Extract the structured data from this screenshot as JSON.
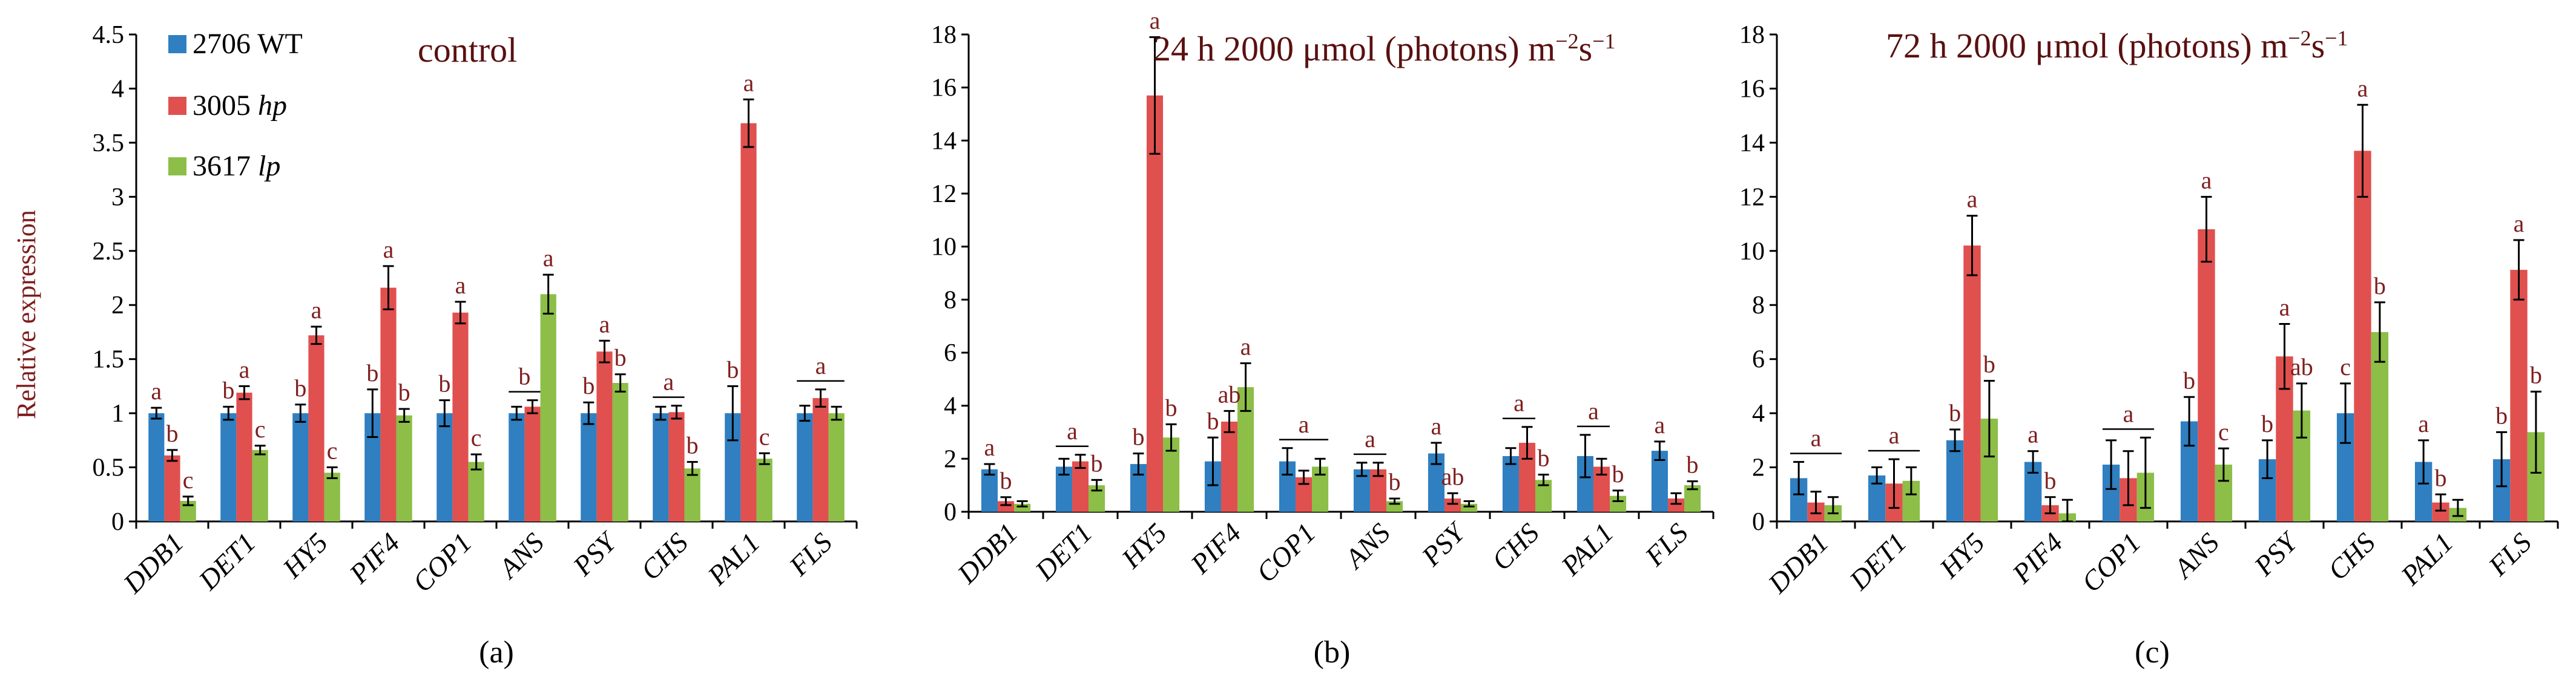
{
  "y_axis_label": "Relative expression",
  "colors": {
    "series": [
      "#2f7fc1",
      "#e0504f",
      "#8cbe48"
    ],
    "significance": "#7f1d1d",
    "title": "#5a1010"
  },
  "legend": [
    {
      "id": "wt",
      "label": "2706 WT"
    },
    {
      "id": "hp",
      "label": "3005 ",
      "italic": "hp"
    },
    {
      "id": "lp",
      "label": "3617 ",
      "italic": "lp"
    }
  ],
  "chart_data": [
    {
      "type": "bar",
      "panel_label": "(a)",
      "title": {
        "text": "control"
      },
      "categories": [
        "DDB1",
        "DET1",
        "HY5",
        "PIF4",
        "COP1",
        "ANS",
        "PSY",
        "CHS",
        "PAL1",
        "FLS"
      ],
      "ylim": [
        0,
        4.5
      ],
      "yticks": [
        "0",
        "0.5",
        "1",
        "1.5",
        "2",
        "2.5",
        "3",
        "3.5",
        "4",
        "4.5"
      ],
      "ytick_values": [
        0,
        0.5,
        1,
        1.5,
        2,
        2.5,
        3,
        3.5,
        4,
        4.5
      ],
      "ylabel": "Relative expression",
      "series": [
        {
          "name": "2706 WT",
          "values": [
            1.0,
            1.0,
            1.0,
            1.0,
            1.0,
            1.0,
            1.0,
            1.0,
            1.0,
            1.0
          ],
          "errors": [
            0.05,
            0.06,
            0.08,
            0.22,
            0.12,
            0.06,
            0.1,
            0.06,
            0.25,
            0.07
          ]
        },
        {
          "name": "3005 hp",
          "values": [
            0.61,
            1.19,
            1.72,
            2.16,
            1.93,
            1.06,
            1.57,
            1.01,
            3.68,
            1.14
          ],
          "errors": [
            0.05,
            0.06,
            0.08,
            0.2,
            0.1,
            0.06,
            0.1,
            0.06,
            0.22,
            0.08
          ]
        },
        {
          "name": "3617 lp",
          "values": [
            0.19,
            0.66,
            0.45,
            0.98,
            0.55,
            2.1,
            1.28,
            0.49,
            0.58,
            1.0
          ],
          "errors": [
            0.04,
            0.04,
            0.05,
            0.06,
            0.07,
            0.18,
            0.08,
            0.06,
            0.05,
            0.06
          ]
        }
      ],
      "significance": [
        {
          "cat": 0,
          "labels": [
            "a",
            "b",
            "c"
          ]
        },
        {
          "cat": 1,
          "labels": [
            "b",
            "a",
            "c"
          ]
        },
        {
          "cat": 2,
          "labels": [
            "b",
            "a",
            "c"
          ]
        },
        {
          "cat": 3,
          "labels": [
            "b",
            "a",
            "b"
          ]
        },
        {
          "cat": 4,
          "labels": [
            "b",
            "a",
            "c"
          ]
        },
        {
          "cat": 5,
          "group": "b",
          "labels": [
            "",
            "",
            "a"
          ]
        },
        {
          "cat": 6,
          "labels": [
            "b",
            "a",
            "b"
          ]
        },
        {
          "cat": 7,
          "group": "a",
          "labels": [
            "",
            "",
            "b"
          ]
        },
        {
          "cat": 8,
          "labels": [
            "b",
            "a",
            "c"
          ]
        },
        {
          "cat": 9,
          "group": "a",
          "labels": [
            "",
            "",
            ""
          ]
        }
      ]
    },
    {
      "type": "bar",
      "panel_label": "(b)",
      "title": {
        "text": "24 h  2000 μmol (photons) m",
        "sup1": "−2",
        "mid": "s",
        "sup2": "−1"
      },
      "categories": [
        "DDB1",
        "DET1",
        "HY5",
        "PIF4",
        "COP1",
        "ANS",
        "PSY",
        "CHS",
        "PAL1",
        "FLS"
      ],
      "ylim": [
        0,
        18
      ],
      "yticks": [
        "0",
        "2",
        "4",
        "6",
        "8",
        "10",
        "12",
        "14",
        "16",
        "18"
      ],
      "ytick_values": [
        0,
        2,
        4,
        6,
        8,
        10,
        12,
        14,
        16,
        18
      ],
      "ylabel": "",
      "series": [
        {
          "name": "2706 WT",
          "values": [
            1.6,
            1.7,
            1.8,
            1.9,
            1.9,
            1.6,
            2.2,
            2.1,
            2.1,
            2.3
          ],
          "errors": [
            0.2,
            0.3,
            0.4,
            0.9,
            0.5,
            0.25,
            0.4,
            0.3,
            0.8,
            0.35
          ]
        },
        {
          "name": "3005 hp",
          "values": [
            0.4,
            1.9,
            15.7,
            3.4,
            1.3,
            1.6,
            0.5,
            2.6,
            1.7,
            0.5
          ],
          "errors": [
            0.15,
            0.25,
            2.2,
            0.4,
            0.25,
            0.25,
            0.2,
            0.6,
            0.3,
            0.2
          ]
        },
        {
          "name": "3617 lp",
          "values": [
            0.3,
            1.0,
            2.8,
            4.7,
            1.7,
            0.4,
            0.3,
            1.2,
            0.6,
            1.0
          ],
          "errors": [
            0.1,
            0.2,
            0.5,
            0.9,
            0.3,
            0.1,
            0.1,
            0.2,
            0.2,
            0.15
          ]
        }
      ],
      "significance": [
        {
          "cat": 0,
          "labels": [
            "a",
            "b",
            ""
          ]
        },
        {
          "cat": 1,
          "group": "a",
          "labels": [
            "",
            "",
            "b"
          ]
        },
        {
          "cat": 2,
          "labels": [
            "b",
            "a",
            "b"
          ]
        },
        {
          "cat": 3,
          "labels": [
            "b",
            "ab",
            "a"
          ]
        },
        {
          "cat": 4,
          "group": "a",
          "labels": [
            "",
            "",
            ""
          ]
        },
        {
          "cat": 5,
          "group": "a",
          "labels": [
            "",
            "",
            "b"
          ]
        },
        {
          "cat": 6,
          "labels": [
            "a",
            "ab",
            ""
          ]
        },
        {
          "cat": 7,
          "group": "a",
          "labels": [
            "",
            "",
            "b"
          ]
        },
        {
          "cat": 8,
          "group": "a",
          "labels": [
            "",
            "",
            "b"
          ]
        },
        {
          "cat": 9,
          "labels": [
            "a",
            "",
            "b"
          ]
        }
      ]
    },
    {
      "type": "bar",
      "panel_label": "(c)",
      "title": {
        "text": "72 h  2000 μmol (photons) m",
        "sup1": "−2",
        "mid": "s",
        "sup2": "−1"
      },
      "categories": [
        "DDB1",
        "DET1",
        "HY5",
        "PIF4",
        "COP1",
        "ANS",
        "PSY",
        "CHS",
        "PAL1",
        "FLS"
      ],
      "ylim": [
        0,
        18
      ],
      "yticks": [
        "0",
        "2",
        "4",
        "6",
        "8",
        "10",
        "12",
        "14",
        "16",
        "18"
      ],
      "ytick_values": [
        0,
        2,
        4,
        6,
        8,
        10,
        12,
        14,
        16,
        18
      ],
      "ylabel": "",
      "series": [
        {
          "name": "2706 WT",
          "values": [
            1.6,
            1.7,
            3.0,
            2.2,
            2.1,
            3.7,
            2.3,
            4.0,
            2.2,
            2.3
          ],
          "errors": [
            0.6,
            0.3,
            0.4,
            0.4,
            0.9,
            0.9,
            0.7,
            1.1,
            0.8,
            1.0
          ]
        },
        {
          "name": "3005 hp",
          "values": [
            0.7,
            1.4,
            10.2,
            0.6,
            1.6,
            10.8,
            6.1,
            13.7,
            0.7,
            9.3
          ],
          "errors": [
            0.4,
            0.9,
            1.1,
            0.3,
            1.0,
            1.2,
            1.2,
            1.7,
            0.3,
            1.1
          ]
        },
        {
          "name": "3617 lp",
          "values": [
            0.6,
            1.5,
            3.8,
            0.3,
            1.8,
            2.1,
            4.1,
            7.0,
            0.5,
            3.3
          ],
          "errors": [
            0.3,
            0.5,
            1.4,
            0.5,
            1.3,
            0.6,
            1.0,
            1.1,
            0.3,
            1.5
          ]
        }
      ],
      "significance": [
        {
          "cat": 0,
          "group": "a",
          "labels": [
            "",
            "",
            ""
          ]
        },
        {
          "cat": 1,
          "group": "a",
          "labels": [
            "",
            "",
            ""
          ]
        },
        {
          "cat": 2,
          "labels": [
            "b",
            "a",
            "b"
          ]
        },
        {
          "cat": 3,
          "labels": [
            "a",
            "b",
            ""
          ]
        },
        {
          "cat": 4,
          "group": "a",
          "labels": [
            "",
            "",
            ""
          ]
        },
        {
          "cat": 5,
          "labels": [
            "b",
            "a",
            "c"
          ]
        },
        {
          "cat": 6,
          "labels": [
            "b",
            "a",
            "ab"
          ]
        },
        {
          "cat": 7,
          "labels": [
            "c",
            "a",
            "b"
          ]
        },
        {
          "cat": 8,
          "labels": [
            "a",
            "b",
            ""
          ]
        },
        {
          "cat": 9,
          "labels": [
            "b",
            "a",
            "b"
          ]
        }
      ]
    }
  ]
}
